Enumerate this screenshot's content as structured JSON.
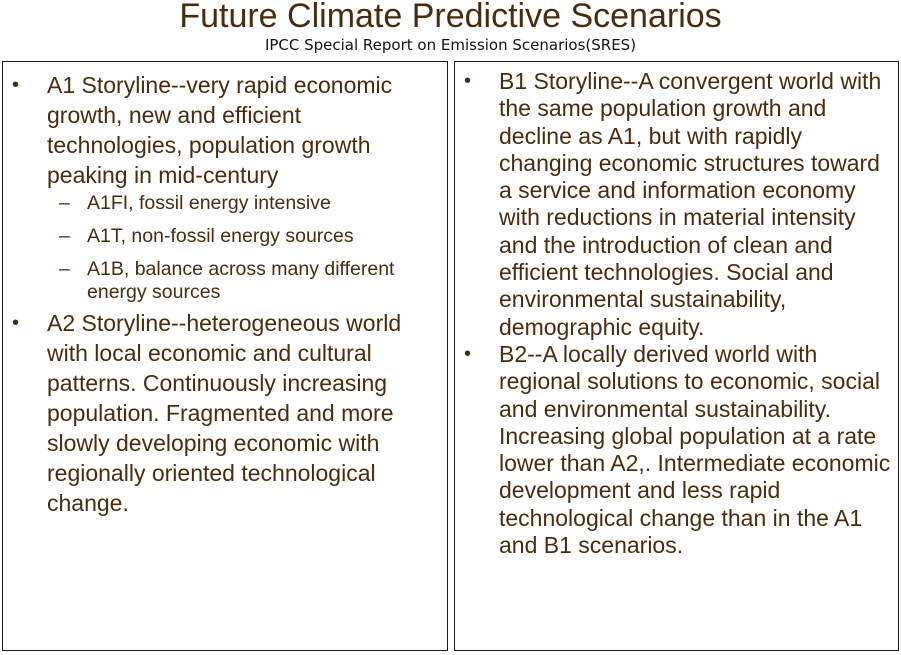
{
  "slide": {
    "title": "Future Climate Predictive Scenarios",
    "subtitle": "IPCC Special Report on Emission Scenarios(SRES)"
  },
  "left": {
    "a1": {
      "text": "A1 Storyline--very rapid economic growth, new and efficient technologies, population growth peaking in mid-century",
      "subs": [
        "A1FI, fossil energy intensive",
        "A1T, non-fossil energy sources",
        "A1B, balance across many different energy sources"
      ]
    },
    "a2": {
      "text": "A2  Storyline--heterogeneous world with local economic and cultural patterns.  Continuously increasing population.  Fragmented and more slowly developing economic with regionally oriented technological change."
    }
  },
  "right": {
    "b1": {
      "text": "B1 Storyline--A convergent world with the same population growth and decline as A1, but with rapidly changing  economic structures toward a  service  and  information economy  with reductions in material intensity  and  the introduction of clean and efficient technologies.  Social and environmental sustainability, demographic equity."
    },
    "b2": {
      "text": "B2--A locally derived world  with regional solutions to economic, social and  environmental sustainability.  Increasing  global population  at a rate lower  than A2,. Intermediate economic development and less  rapid technological change than in the A1 and B1 scenarios."
    }
  },
  "glyphs": {
    "bullet": "•",
    "dash": "–"
  },
  "colors": {
    "text": "#4a2c0d",
    "subtitle": "#111111",
    "border": "#1a1a1a",
    "background": "#ffffff"
  }
}
